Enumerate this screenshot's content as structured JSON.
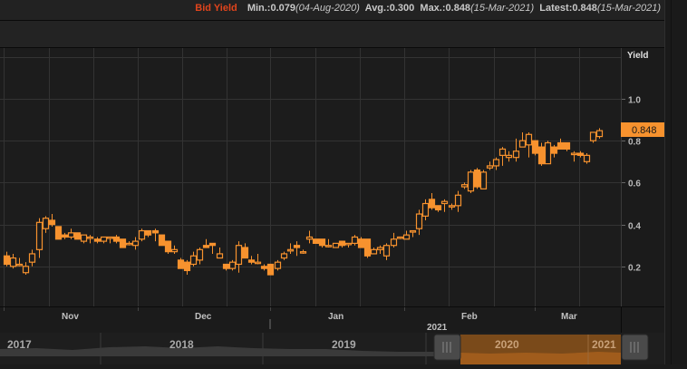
{
  "header": {
    "series_name": "Bid Yield",
    "min_label": "Min.:0.079",
    "min_date": "(04-Aug-2020)",
    "avg_label": "Avg.:0.300",
    "max_label": "Max.:0.848",
    "max_date": "(15-Mar-2021)",
    "latest_label": "Latest:0.848",
    "latest_date": "(15-Mar-2021)"
  },
  "colors": {
    "candle": "#f7922e",
    "series_name": "#e0441c",
    "latest_badge": "#f7922e",
    "navigator_selection": "#7a4a1a"
  },
  "yaxis": {
    "title": "Yield",
    "ticks": [
      "1.0",
      "0.8",
      "0.6",
      "0.4",
      "0.2"
    ],
    "latest_value": "0.848"
  },
  "xaxis": {
    "months": [
      "Nov",
      "Dec",
      "Jan",
      "Feb",
      "Mar"
    ],
    "year_label": "2021"
  },
  "navigator": {
    "years": [
      "2017",
      "2018",
      "2019",
      "2020",
      "2021"
    ]
  },
  "chart_data": {
    "type": "candlestick",
    "title": "Bid Yield",
    "ylabel": "Yield",
    "ylim": [
      0.0,
      1.2
    ],
    "grid": true,
    "x_labels": [
      "Nov",
      "Dec",
      "Jan",
      "Feb",
      "Mar"
    ],
    "summary": {
      "min": 0.079,
      "min_date": "04-Aug-2020",
      "avg": 0.3,
      "max": 0.848,
      "max_date": "15-Mar-2021",
      "latest": 0.848,
      "latest_date": "15-Mar-2021"
    },
    "candles": [
      {
        "o": 0.25,
        "h": 0.27,
        "l": 0.2,
        "c": 0.21
      },
      {
        "o": 0.2,
        "h": 0.26,
        "l": 0.19,
        "c": 0.24
      },
      {
        "o": 0.21,
        "h": 0.24,
        "l": 0.2,
        "c": 0.21
      },
      {
        "o": 0.17,
        "h": 0.22,
        "l": 0.16,
        "c": 0.2
      },
      {
        "o": 0.22,
        "h": 0.28,
        "l": 0.2,
        "c": 0.26
      },
      {
        "o": 0.28,
        "h": 0.43,
        "l": 0.24,
        "c": 0.41
      },
      {
        "o": 0.38,
        "h": 0.44,
        "l": 0.36,
        "c": 0.43
      },
      {
        "o": 0.42,
        "h": 0.45,
        "l": 0.39,
        "c": 0.4
      },
      {
        "o": 0.39,
        "h": 0.39,
        "l": 0.33,
        "c": 0.33
      },
      {
        "o": 0.35,
        "h": 0.36,
        "l": 0.33,
        "c": 0.34
      },
      {
        "o": 0.34,
        "h": 0.38,
        "l": 0.33,
        "c": 0.36
      },
      {
        "o": 0.36,
        "h": 0.36,
        "l": 0.33,
        "c": 0.33
      },
      {
        "o": 0.32,
        "h": 0.35,
        "l": 0.31,
        "c": 0.35
      },
      {
        "o": 0.34,
        "h": 0.35,
        "l": 0.31,
        "c": 0.34
      },
      {
        "o": 0.33,
        "h": 0.34,
        "l": 0.31,
        "c": 0.32
      },
      {
        "o": 0.32,
        "h": 0.34,
        "l": 0.31,
        "c": 0.34
      },
      {
        "o": 0.34,
        "h": 0.34,
        "l": 0.31,
        "c": 0.34
      },
      {
        "o": 0.34,
        "h": 0.35,
        "l": 0.31,
        "c": 0.32
      },
      {
        "o": 0.33,
        "h": 0.33,
        "l": 0.29,
        "c": 0.29
      },
      {
        "o": 0.31,
        "h": 0.32,
        "l": 0.3,
        "c": 0.31
      },
      {
        "o": 0.3,
        "h": 0.34,
        "l": 0.28,
        "c": 0.32
      },
      {
        "o": 0.33,
        "h": 0.38,
        "l": 0.32,
        "c": 0.37
      },
      {
        "o": 0.37,
        "h": 0.37,
        "l": 0.34,
        "c": 0.35
      },
      {
        "o": 0.37,
        "h": 0.38,
        "l": 0.32,
        "c": 0.36
      },
      {
        "o": 0.35,
        "h": 0.35,
        "l": 0.3,
        "c": 0.3
      },
      {
        "o": 0.32,
        "h": 0.32,
        "l": 0.26,
        "c": 0.27
      },
      {
        "o": 0.27,
        "h": 0.3,
        "l": 0.26,
        "c": 0.28
      },
      {
        "o": 0.23,
        "h": 0.24,
        "l": 0.19,
        "c": 0.19
      },
      {
        "o": 0.22,
        "h": 0.23,
        "l": 0.16,
        "c": 0.18
      },
      {
        "o": 0.21,
        "h": 0.27,
        "l": 0.2,
        "c": 0.25
      },
      {
        "o": 0.23,
        "h": 0.29,
        "l": 0.21,
        "c": 0.28
      },
      {
        "o": 0.3,
        "h": 0.33,
        "l": 0.29,
        "c": 0.29
      },
      {
        "o": 0.31,
        "h": 0.31,
        "l": 0.26,
        "c": 0.3
      },
      {
        "o": 0.24,
        "h": 0.29,
        "l": 0.24,
        "c": 0.26
      },
      {
        "o": 0.21,
        "h": 0.21,
        "l": 0.18,
        "c": 0.19
      },
      {
        "o": 0.19,
        "h": 0.23,
        "l": 0.18,
        "c": 0.22
      },
      {
        "o": 0.21,
        "h": 0.32,
        "l": 0.17,
        "c": 0.3
      },
      {
        "o": 0.29,
        "h": 0.31,
        "l": 0.24,
        "c": 0.24
      },
      {
        "o": 0.23,
        "h": 0.25,
        "l": 0.21,
        "c": 0.22
      },
      {
        "o": 0.22,
        "h": 0.26,
        "l": 0.21,
        "c": 0.22
      },
      {
        "o": 0.2,
        "h": 0.21,
        "l": 0.18,
        "c": 0.19
      },
      {
        "o": 0.21,
        "h": 0.21,
        "l": 0.16,
        "c": 0.16
      },
      {
        "o": 0.19,
        "h": 0.23,
        "l": 0.18,
        "c": 0.22
      },
      {
        "o": 0.24,
        "h": 0.27,
        "l": 0.23,
        "c": 0.26
      },
      {
        "o": 0.28,
        "h": 0.31,
        "l": 0.26,
        "c": 0.28
      },
      {
        "o": 0.3,
        "h": 0.32,
        "l": 0.25,
        "c": 0.29
      },
      {
        "o": 0.27,
        "h": 0.28,
        "l": 0.26,
        "c": 0.27
      },
      {
        "o": 0.33,
        "h": 0.37,
        "l": 0.31,
        "c": 0.34
      },
      {
        "o": 0.33,
        "h": 0.33,
        "l": 0.31,
        "c": 0.31
      },
      {
        "o": 0.33,
        "h": 0.33,
        "l": 0.29,
        "c": 0.3
      },
      {
        "o": 0.3,
        "h": 0.33,
        "l": 0.29,
        "c": 0.3
      },
      {
        "o": 0.29,
        "h": 0.31,
        "l": 0.29,
        "c": 0.31
      },
      {
        "o": 0.32,
        "h": 0.32,
        "l": 0.29,
        "c": 0.3
      },
      {
        "o": 0.31,
        "h": 0.31,
        "l": 0.29,
        "c": 0.31
      },
      {
        "o": 0.31,
        "h": 0.35,
        "l": 0.3,
        "c": 0.34
      },
      {
        "o": 0.33,
        "h": 0.34,
        "l": 0.29,
        "c": 0.29
      },
      {
        "o": 0.33,
        "h": 0.33,
        "l": 0.24,
        "c": 0.25
      },
      {
        "o": 0.26,
        "h": 0.29,
        "l": 0.26,
        "c": 0.28
      },
      {
        "o": 0.28,
        "h": 0.3,
        "l": 0.26,
        "c": 0.29
      },
      {
        "o": 0.25,
        "h": 0.31,
        "l": 0.23,
        "c": 0.3
      },
      {
        "o": 0.3,
        "h": 0.36,
        "l": 0.29,
        "c": 0.33
      },
      {
        "o": 0.34,
        "h": 0.34,
        "l": 0.33,
        "c": 0.34
      },
      {
        "o": 0.33,
        "h": 0.37,
        "l": 0.33,
        "c": 0.35
      },
      {
        "o": 0.37,
        "h": 0.37,
        "l": 0.34,
        "c": 0.37
      },
      {
        "o": 0.38,
        "h": 0.47,
        "l": 0.35,
        "c": 0.45
      },
      {
        "o": 0.44,
        "h": 0.52,
        "l": 0.42,
        "c": 0.5
      },
      {
        "o": 0.52,
        "h": 0.55,
        "l": 0.47,
        "c": 0.48
      },
      {
        "o": 0.49,
        "h": 0.49,
        "l": 0.46,
        "c": 0.47
      },
      {
        "o": 0.5,
        "h": 0.52,
        "l": 0.46,
        "c": 0.51
      },
      {
        "o": 0.49,
        "h": 0.5,
        "l": 0.47,
        "c": 0.49
      },
      {
        "o": 0.49,
        "h": 0.56,
        "l": 0.46,
        "c": 0.54
      },
      {
        "o": 0.58,
        "h": 0.6,
        "l": 0.57,
        "c": 0.59
      },
      {
        "o": 0.56,
        "h": 0.66,
        "l": 0.55,
        "c": 0.65
      },
      {
        "o": 0.66,
        "h": 0.67,
        "l": 0.57,
        "c": 0.58
      },
      {
        "o": 0.57,
        "h": 0.66,
        "l": 0.57,
        "c": 0.65
      },
      {
        "o": 0.67,
        "h": 0.7,
        "l": 0.66,
        "c": 0.68
      },
      {
        "o": 0.68,
        "h": 0.72,
        "l": 0.66,
        "c": 0.71
      },
      {
        "o": 0.73,
        "h": 0.77,
        "l": 0.68,
        "c": 0.76
      },
      {
        "o": 0.72,
        "h": 0.75,
        "l": 0.7,
        "c": 0.73
      },
      {
        "o": 0.72,
        "h": 0.81,
        "l": 0.7,
        "c": 0.75
      },
      {
        "o": 0.77,
        "h": 0.84,
        "l": 0.77,
        "c": 0.8
      },
      {
        "o": 0.78,
        "h": 0.84,
        "l": 0.72,
        "c": 0.83
      },
      {
        "o": 0.8,
        "h": 0.8,
        "l": 0.73,
        "c": 0.74
      },
      {
        "o": 0.77,
        "h": 0.79,
        "l": 0.68,
        "c": 0.69
      },
      {
        "o": 0.69,
        "h": 0.8,
        "l": 0.69,
        "c": 0.79
      },
      {
        "o": 0.77,
        "h": 0.78,
        "l": 0.72,
        "c": 0.74
      },
      {
        "o": 0.79,
        "h": 0.81,
        "l": 0.76,
        "c": 0.76
      },
      {
        "o": 0.79,
        "h": 0.79,
        "l": 0.75,
        "c": 0.76
      },
      {
        "o": 0.74,
        "h": 0.75,
        "l": 0.7,
        "c": 0.74
      },
      {
        "o": 0.74,
        "h": 0.75,
        "l": 0.72,
        "c": 0.73
      },
      {
        "o": 0.7,
        "h": 0.74,
        "l": 0.69,
        "c": 0.73
      },
      {
        "o": 0.8,
        "h": 0.84,
        "l": 0.79,
        "c": 0.84
      },
      {
        "o": 0.82,
        "h": 0.86,
        "l": 0.81,
        "c": 0.848
      }
    ]
  }
}
